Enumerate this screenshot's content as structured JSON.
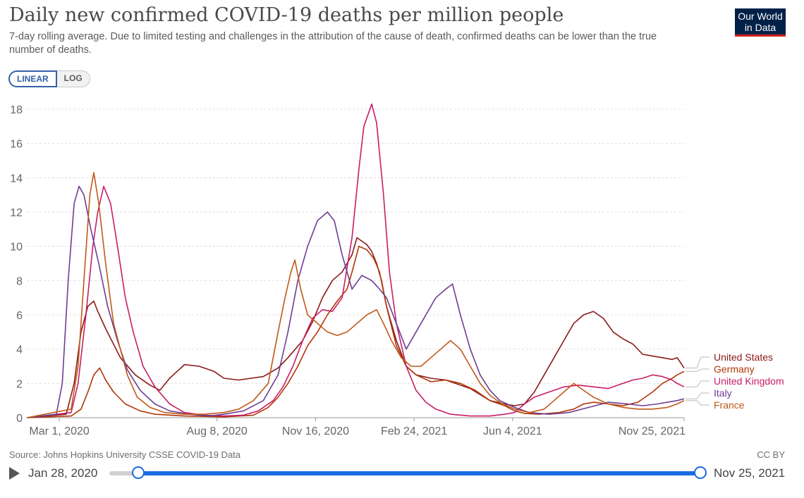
{
  "header": {
    "title": "Daily new confirmed COVID-19 deaths per million people",
    "subtitle": "7-day rolling average. Due to limited testing and challenges in the attribution of the cause of death, confirmed deaths can be lower than the true number of deaths.",
    "logo_line1": "Our World",
    "logo_line2": "in Data"
  },
  "scale_toggle": {
    "linear": "LINEAR",
    "log": "LOG",
    "selected": "LINEAR"
  },
  "footer": {
    "source": "Source: Johns Hopkins University CSSE COVID-19 Data",
    "license": "CC BY"
  },
  "timeline": {
    "start": "Jan 28, 2020",
    "end": "Nov 25, 2021"
  },
  "chart_data": {
    "type": "line",
    "title": "Daily new confirmed COVID-19 deaths per million people",
    "xlabel": "",
    "ylabel": "",
    "ylim": [
      0,
      18
    ],
    "yticks": [
      0,
      2,
      4,
      6,
      8,
      10,
      12,
      14,
      16,
      18
    ],
    "grid": true,
    "x_unit": "days since Jan 28, 2020",
    "xlim": [
      0,
      667
    ],
    "xticks": [
      {
        "day": 33,
        "label": "Mar 1, 2020"
      },
      {
        "day": 193,
        "label": "Aug 8, 2020"
      },
      {
        "day": 293,
        "label": "Nov 16, 2020"
      },
      {
        "day": 393,
        "label": "Feb 24, 2021"
      },
      {
        "day": 493,
        "label": "Jun 4, 2021"
      },
      {
        "day": 667,
        "label": "Nov 25, 2021"
      }
    ],
    "series": [
      {
        "name": "United States",
        "color": "#8b1a1a",
        "points": [
          [
            0,
            0
          ],
          [
            40,
            0.2
          ],
          [
            48,
            2
          ],
          [
            55,
            5
          ],
          [
            62,
            6.5
          ],
          [
            68,
            6.8
          ],
          [
            72,
            6.2
          ],
          [
            80,
            5.2
          ],
          [
            95,
            3.5
          ],
          [
            110,
            2.5
          ],
          [
            125,
            1.9
          ],
          [
            135,
            1.6
          ],
          [
            145,
            2.3
          ],
          [
            160,
            3.1
          ],
          [
            175,
            3
          ],
          [
            190,
            2.7
          ],
          [
            200,
            2.3
          ],
          [
            215,
            2.2
          ],
          [
            240,
            2.4
          ],
          [
            255,
            2.9
          ],
          [
            265,
            3.5
          ],
          [
            280,
            4.5
          ],
          [
            290,
            5.6
          ],
          [
            300,
            7
          ],
          [
            310,
            8
          ],
          [
            320,
            8.5
          ],
          [
            330,
            9.5
          ],
          [
            335,
            10.5
          ],
          [
            340,
            10.3
          ],
          [
            345,
            10.1
          ],
          [
            350,
            9.7
          ],
          [
            355,
            9
          ],
          [
            360,
            8
          ],
          [
            365,
            6.5
          ],
          [
            375,
            4.5
          ],
          [
            385,
            3
          ],
          [
            395,
            2.5
          ],
          [
            410,
            2.3
          ],
          [
            425,
            2.2
          ],
          [
            440,
            1.9
          ],
          [
            450,
            1.7
          ],
          [
            470,
            1
          ],
          [
            485,
            0.8
          ],
          [
            495,
            0.7
          ],
          [
            505,
            0.8
          ],
          [
            515,
            1.5
          ],
          [
            525,
            2.5
          ],
          [
            535,
            3.5
          ],
          [
            545,
            4.5
          ],
          [
            555,
            5.5
          ],
          [
            565,
            6
          ],
          [
            575,
            6.2
          ],
          [
            585,
            5.8
          ],
          [
            595,
            5
          ],
          [
            605,
            4.6
          ],
          [
            615,
            4.3
          ],
          [
            625,
            3.7
          ],
          [
            635,
            3.6
          ],
          [
            645,
            3.5
          ],
          [
            655,
            3.4
          ],
          [
            660,
            3.5
          ],
          [
            667,
            2.9
          ]
        ]
      },
      {
        "name": "Germany",
        "color": "#b13507",
        "points": [
          [
            0,
            0
          ],
          [
            45,
            0.1
          ],
          [
            55,
            0.5
          ],
          [
            62,
            1.5
          ],
          [
            68,
            2.5
          ],
          [
            74,
            2.9
          ],
          [
            80,
            2.2
          ],
          [
            88,
            1.5
          ],
          [
            100,
            0.8
          ],
          [
            115,
            0.4
          ],
          [
            130,
            0.2
          ],
          [
            160,
            0.1
          ],
          [
            200,
            0.05
          ],
          [
            230,
            0.15
          ],
          [
            245,
            0.6
          ],
          [
            255,
            1.2
          ],
          [
            265,
            2
          ],
          [
            275,
            3
          ],
          [
            285,
            4.2
          ],
          [
            295,
            5
          ],
          [
            305,
            6
          ],
          [
            315,
            6.8
          ],
          [
            325,
            7.5
          ],
          [
            330,
            8.5
          ],
          [
            337,
            10
          ],
          [
            345,
            9.8
          ],
          [
            352,
            9.3
          ],
          [
            358,
            8.5
          ],
          [
            365,
            6.5
          ],
          [
            375,
            4.2
          ],
          [
            385,
            3
          ],
          [
            395,
            2.5
          ],
          [
            410,
            2.1
          ],
          [
            425,
            2.2
          ],
          [
            440,
            2
          ],
          [
            455,
            1.6
          ],
          [
            470,
            1
          ],
          [
            485,
            0.7
          ],
          [
            495,
            0.4
          ],
          [
            505,
            0.25
          ],
          [
            520,
            0.2
          ],
          [
            540,
            0.3
          ],
          [
            555,
            0.5
          ],
          [
            565,
            0.8
          ],
          [
            575,
            0.9
          ],
          [
            590,
            0.8
          ],
          [
            605,
            0.7
          ],
          [
            620,
            0.9
          ],
          [
            635,
            1.5
          ],
          [
            645,
            2
          ],
          [
            655,
            2.3
          ],
          [
            660,
            2.5
          ],
          [
            667,
            2.7
          ]
        ]
      },
      {
        "name": "United Kingdom",
        "color": "#c71d68",
        "points": [
          [
            0,
            0
          ],
          [
            45,
            0.3
          ],
          [
            52,
            2
          ],
          [
            60,
            6
          ],
          [
            67,
            10
          ],
          [
            72,
            12
          ],
          [
            78,
            13.5
          ],
          [
            85,
            12.5
          ],
          [
            92,
            10
          ],
          [
            100,
            7
          ],
          [
            108,
            5
          ],
          [
            118,
            3
          ],
          [
            130,
            1.8
          ],
          [
            145,
            0.8
          ],
          [
            160,
            0.3
          ],
          [
            180,
            0.15
          ],
          [
            200,
            0.1
          ],
          [
            220,
            0.15
          ],
          [
            235,
            0.4
          ],
          [
            250,
            1
          ],
          [
            260,
            1.8
          ],
          [
            270,
            3
          ],
          [
            280,
            4.5
          ],
          [
            290,
            5.8
          ],
          [
            300,
            6.3
          ],
          [
            310,
            6.2
          ],
          [
            320,
            7
          ],
          [
            330,
            10.5
          ],
          [
            337,
            14.5
          ],
          [
            342,
            17
          ],
          [
            350,
            18.3
          ],
          [
            355,
            17.2
          ],
          [
            362,
            13
          ],
          [
            368,
            8.5
          ],
          [
            375,
            5.5
          ],
          [
            385,
            3
          ],
          [
            395,
            1.6
          ],
          [
            405,
            0.9
          ],
          [
            415,
            0.5
          ],
          [
            430,
            0.2
          ],
          [
            450,
            0.1
          ],
          [
            470,
            0.1
          ],
          [
            485,
            0.2
          ],
          [
            495,
            0.3
          ],
          [
            505,
            0.8
          ],
          [
            515,
            1.2
          ],
          [
            530,
            1.5
          ],
          [
            545,
            1.8
          ],
          [
            560,
            1.9
          ],
          [
            575,
            1.8
          ],
          [
            590,
            1.7
          ],
          [
            605,
            2
          ],
          [
            615,
            2.2
          ],
          [
            625,
            2.3
          ],
          [
            635,
            2.5
          ],
          [
            645,
            2.4
          ],
          [
            655,
            2.2
          ],
          [
            660,
            2
          ],
          [
            667,
            1.8
          ]
        ]
      },
      {
        "name": "Italy",
        "color": "#6d3e91",
        "points": [
          [
            0,
            0
          ],
          [
            30,
            0.2
          ],
          [
            36,
            2
          ],
          [
            42,
            8
          ],
          [
            48,
            12.5
          ],
          [
            53,
            13.5
          ],
          [
            58,
            13
          ],
          [
            65,
            11
          ],
          [
            73,
            9
          ],
          [
            82,
            6.5
          ],
          [
            92,
            4.5
          ],
          [
            102,
            2.8
          ],
          [
            115,
            1.6
          ],
          [
            130,
            0.8
          ],
          [
            145,
            0.4
          ],
          [
            165,
            0.2
          ],
          [
            185,
            0.1
          ],
          [
            200,
            0.2
          ],
          [
            220,
            0.4
          ],
          [
            240,
            1
          ],
          [
            255,
            2.5
          ],
          [
            265,
            5
          ],
          [
            275,
            8
          ],
          [
            285,
            10
          ],
          [
            295,
            11.5
          ],
          [
            305,
            12
          ],
          [
            312,
            11.5
          ],
          [
            320,
            9.5
          ],
          [
            330,
            7.5
          ],
          [
            340,
            8.3
          ],
          [
            350,
            8
          ],
          [
            358,
            7.5
          ],
          [
            365,
            7
          ],
          [
            375,
            5.5
          ],
          [
            385,
            4
          ],
          [
            395,
            5
          ],
          [
            405,
            6
          ],
          [
            415,
            7
          ],
          [
            425,
            7.5
          ],
          [
            432,
            7.8
          ],
          [
            440,
            6
          ],
          [
            450,
            4
          ],
          [
            460,
            2.5
          ],
          [
            470,
            1.6
          ],
          [
            480,
            1
          ],
          [
            495,
            0.6
          ],
          [
            510,
            0.3
          ],
          [
            530,
            0.2
          ],
          [
            550,
            0.3
          ],
          [
            570,
            0.6
          ],
          [
            590,
            0.9
          ],
          [
            610,
            0.8
          ],
          [
            625,
            0.7
          ],
          [
            640,
            0.8
          ],
          [
            650,
            0.9
          ],
          [
            660,
            1
          ],
          [
            667,
            1.1
          ]
        ]
      },
      {
        "name": "France",
        "color": "#c05917",
        "points": [
          [
            0,
            0
          ],
          [
            45,
            0.5
          ],
          [
            52,
            3
          ],
          [
            58,
            8
          ],
          [
            64,
            13
          ],
          [
            68,
            14.3
          ],
          [
            73,
            12.5
          ],
          [
            80,
            9
          ],
          [
            88,
            5.5
          ],
          [
            95,
            4
          ],
          [
            102,
            2.5
          ],
          [
            112,
            1.2
          ],
          [
            125,
            0.6
          ],
          [
            140,
            0.3
          ],
          [
            160,
            0.2
          ],
          [
            180,
            0.2
          ],
          [
            200,
            0.3
          ],
          [
            215,
            0.5
          ],
          [
            230,
            1
          ],
          [
            245,
            2
          ],
          [
            255,
            5
          ],
          [
            262,
            7
          ],
          [
            268,
            8.5
          ],
          [
            272,
            9.2
          ],
          [
            278,
            7.5
          ],
          [
            285,
            6
          ],
          [
            295,
            5.5
          ],
          [
            305,
            5
          ],
          [
            315,
            4.8
          ],
          [
            325,
            5
          ],
          [
            335,
            5.5
          ],
          [
            345,
            6
          ],
          [
            355,
            6.3
          ],
          [
            362,
            5.5
          ],
          [
            370,
            4.5
          ],
          [
            380,
            3.5
          ],
          [
            390,
            3
          ],
          [
            400,
            3
          ],
          [
            410,
            3.5
          ],
          [
            420,
            4
          ],
          [
            430,
            4.5
          ],
          [
            440,
            4
          ],
          [
            450,
            3
          ],
          [
            460,
            2
          ],
          [
            470,
            1.3
          ],
          [
            480,
            0.9
          ],
          [
            495,
            0.5
          ],
          [
            510,
            0.3
          ],
          [
            525,
            0.5
          ],
          [
            535,
            1
          ],
          [
            545,
            1.5
          ],
          [
            555,
            2
          ],
          [
            565,
            1.6
          ],
          [
            575,
            1.2
          ],
          [
            590,
            0.8
          ],
          [
            605,
            0.6
          ],
          [
            620,
            0.5
          ],
          [
            635,
            0.5
          ],
          [
            650,
            0.6
          ],
          [
            660,
            0.8
          ],
          [
            667,
            1
          ]
        ]
      }
    ]
  }
}
